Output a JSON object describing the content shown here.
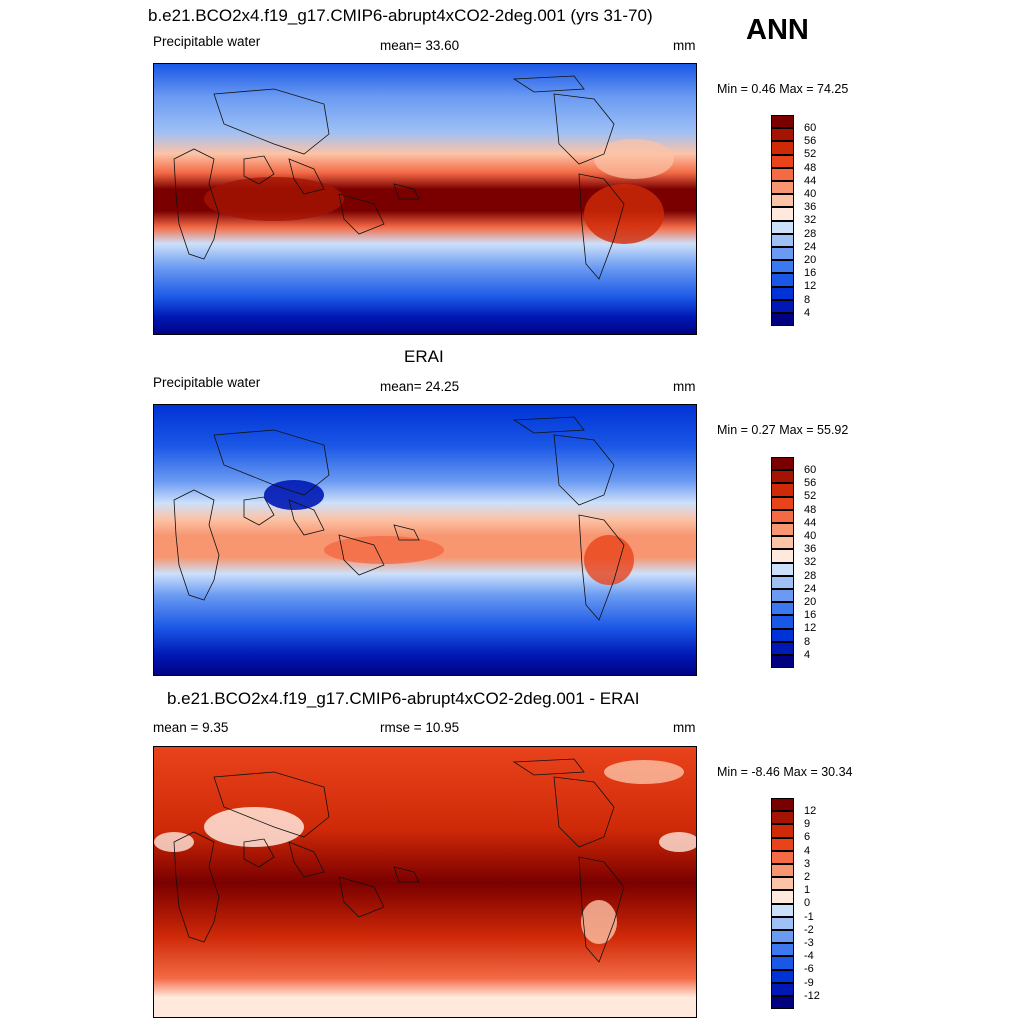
{
  "season": "ANN",
  "colors": {
    "abs_scale": [
      "#000080",
      "#0018b4",
      "#0033d6",
      "#1a57e6",
      "#3c79f0",
      "#6a9af2",
      "#9ec0f5",
      "#cde0fa",
      "#ffe8dc",
      "#fcc3a6",
      "#f79671",
      "#f36a45",
      "#e9431c",
      "#cf2a08",
      "#a51403",
      "#7a0000"
    ],
    "diff_scale": [
      "#000080",
      "#0018b4",
      "#0033d6",
      "#1a57e6",
      "#3c79f0",
      "#6a9af2",
      "#9ec0f5",
      "#cde0fa",
      "#ffe8dc",
      "#fcc3a6",
      "#f79671",
      "#f36a45",
      "#e9431c",
      "#cf2a08",
      "#a51403",
      "#7a0000"
    ]
  },
  "panels": [
    {
      "title": "b.e21.BCO2x4.f19_g17.CMIP6-abrupt4xCO2-2deg.001 (yrs 31-70)",
      "left_label": "Precipitable water",
      "center_label": "mean=  33.60",
      "units": "mm",
      "minmax": "Min =   0.46 Max =  74.25",
      "colorbar_labels": [
        "60",
        "56",
        "52",
        "48",
        "44",
        "40",
        "36",
        "32",
        "28",
        "24",
        "20",
        "16",
        "12",
        "8",
        "4"
      ],
      "field": "model"
    },
    {
      "title": "ERAI",
      "left_label": "Precipitable water",
      "center_label": "mean=  24.25",
      "units": "mm",
      "minmax": "Min =   0.27 Max =  55.92",
      "colorbar_labels": [
        "60",
        "56",
        "52",
        "48",
        "44",
        "40",
        "36",
        "32",
        "28",
        "24",
        "20",
        "16",
        "12",
        "8",
        "4"
      ],
      "field": "obs"
    },
    {
      "title": "b.e21.BCO2x4.f19_g17.CMIP6-abrupt4xCO2-2deg.001 - ERAI",
      "left_label": "mean =   9.35",
      "center_label": "rmse =  10.95",
      "units": "mm",
      "minmax": "Min =  -8.46 Max =  30.34",
      "colorbar_labels": [
        "12",
        "9",
        "6",
        "4",
        "3",
        "2",
        "1",
        "0",
        "-1",
        "-2",
        "-3",
        "-4",
        "-6",
        "-9",
        "-12"
      ],
      "field": "diff"
    }
  ]
}
